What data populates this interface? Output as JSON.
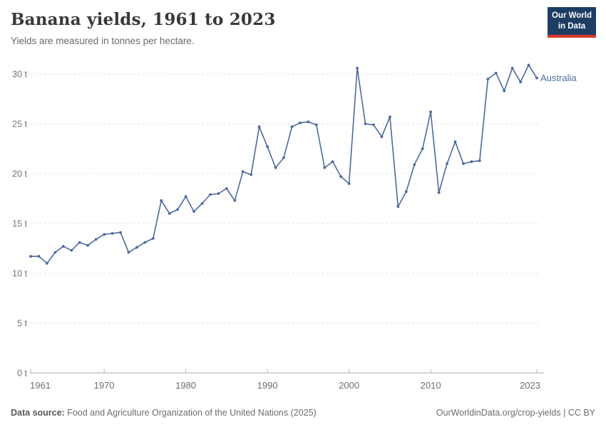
{
  "header": {
    "title": "Banana yields, 1961 to 2023",
    "subtitle": "Yields are measured in tonnes per hectare."
  },
  "logo": {
    "line1": "Our World",
    "line2": "in Data",
    "bg_color": "#1d3d63",
    "accent_color": "#d7382a"
  },
  "footer": {
    "source_label": "Data source:",
    "source_text": " Food and Agriculture Organization of the United Nations (2025)",
    "right_text": "OurWorldinData.org/crop-yields | CC BY"
  },
  "chart_data": {
    "type": "line",
    "title": "Banana yields, 1961 to 2023",
    "xlabel": "",
    "ylabel": "tonnes per hectare",
    "unit_suffix": " t",
    "xlim": [
      1961,
      2023
    ],
    "ylim": [
      0,
      31
    ],
    "x_ticks": [
      1961,
      1970,
      1980,
      1990,
      2000,
      2010,
      2023
    ],
    "y_ticks": [
      0,
      5,
      10,
      15,
      20,
      25,
      30
    ],
    "grid": "horizontal-dashed",
    "legend": "end-of-line-label",
    "line_color": "#4c6a9c",
    "axis_color": "#a8a8a8",
    "grid_color": "#dcdcdc",
    "tick_label_color": "#757575",
    "series": [
      {
        "name": "Australia",
        "color": "#4c6a9c",
        "years": [
          1961,
          1962,
          1963,
          1964,
          1965,
          1966,
          1967,
          1968,
          1969,
          1970,
          1971,
          1972,
          1973,
          1974,
          1975,
          1976,
          1977,
          1978,
          1979,
          1980,
          1981,
          1982,
          1983,
          1984,
          1985,
          1986,
          1987,
          1988,
          1989,
          1990,
          1991,
          1992,
          1993,
          1994,
          1995,
          1996,
          1997,
          1998,
          1999,
          2000,
          2001,
          2002,
          2003,
          2004,
          2005,
          2006,
          2007,
          2008,
          2009,
          2010,
          2011,
          2012,
          2013,
          2014,
          2015,
          2016,
          2017,
          2018,
          2019,
          2020,
          2021,
          2022,
          2023
        ],
        "values": [
          11.7,
          11.7,
          11.0,
          12.1,
          12.7,
          12.3,
          13.1,
          12.8,
          13.4,
          13.9,
          14.0,
          14.1,
          12.1,
          12.6,
          13.1,
          13.5,
          17.3,
          16.0,
          16.4,
          17.7,
          16.2,
          17.0,
          17.9,
          18.0,
          18.5,
          17.3,
          20.2,
          19.9,
          24.7,
          22.7,
          20.6,
          21.6,
          24.7,
          25.1,
          25.2,
          24.9,
          20.6,
          21.2,
          19.7,
          19.0,
          30.6,
          25.0,
          24.9,
          23.7,
          25.7,
          16.7,
          18.2,
          20.9,
          22.5,
          26.2,
          18.1,
          21.0,
          23.2,
          21.0,
          21.2,
          21.3,
          29.5,
          30.1,
          28.3,
          30.6,
          29.2,
          30.9,
          29.6
        ]
      }
    ]
  }
}
